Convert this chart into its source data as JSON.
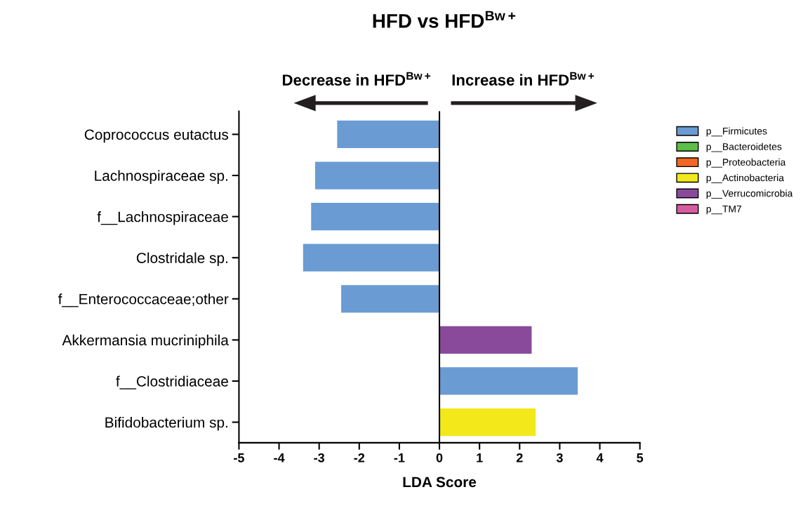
{
  "chart_data": {
    "type": "bar",
    "orientation": "horizontal",
    "title": "HFD vs HFD$^{Bw+}$",
    "xlabel": "LDA Score",
    "categories": [
      "Coprococcus eutactus",
      "Lachnospiraceae sp.",
      "f__Lachnospiraceae",
      "Clostridale sp.",
      "f__Enterococcaceae;other",
      "Akkermansia mucriniphila",
      "f__Clostridiaceae",
      "Bifidobacterium sp."
    ],
    "series": [
      {
        "name": "p__Firmicutes",
        "color": "#6a9bd3",
        "values": [
          -2.55,
          -3.1,
          -3.2,
          -3.4,
          -2.45,
          null,
          3.45,
          null
        ]
      },
      {
        "name": "p__Bacteroidetes",
        "color": "#5bbf4a",
        "values": [
          null,
          null,
          null,
          null,
          null,
          null,
          null,
          null
        ]
      },
      {
        "name": "p__Proteobacteria",
        "color": "#f26522",
        "values": [
          null,
          null,
          null,
          null,
          null,
          null,
          null,
          null
        ]
      },
      {
        "name": "p__Actinobacteria",
        "color": "#f2e81a",
        "values": [
          null,
          null,
          null,
          null,
          null,
          null,
          null,
          2.4
        ]
      },
      {
        "name": "p__Verrucomicrobia",
        "color": "#8a4a9c",
        "values": [
          null,
          null,
          null,
          null,
          null,
          2.3,
          null,
          null
        ]
      },
      {
        "name": "p__TM7",
        "color": "#d85ca0",
        "values": [
          null,
          null,
          null,
          null,
          null,
          null,
          null,
          null
        ]
      }
    ],
    "xlim": [
      -5,
      5
    ],
    "xticks": [
      -5,
      -4,
      -3,
      -2,
      -1,
      0,
      1,
      2,
      3,
      4,
      5
    ],
    "ref_lines": [
      {
        "axis": "x",
        "value": 0,
        "color": "#000000"
      }
    ],
    "annotations": [
      "Decrease in HFD$^{Bw+}$",
      "Increase in HFD$^{Bw+}$"
    ],
    "grid": false,
    "legend": "right"
  }
}
